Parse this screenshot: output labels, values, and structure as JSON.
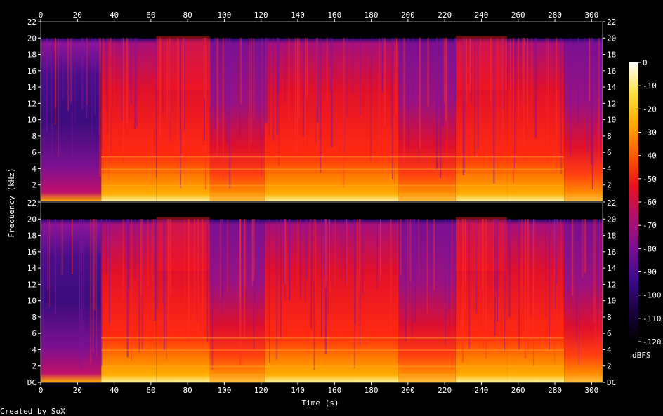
{
  "footer": "Created by SoX",
  "chart_data": {
    "type": "heatmap",
    "xlabel": "Time (s)",
    "ylabel": "Frequency (kHz)",
    "xlim": [
      0,
      306
    ],
    "x_ticks": [
      0,
      20,
      40,
      60,
      80,
      100,
      120,
      140,
      160,
      180,
      200,
      220,
      240,
      260,
      280,
      300
    ],
    "y_tick_labels": [
      "DC",
      "2",
      "4",
      "6",
      "8",
      "10",
      "12",
      "14",
      "16",
      "18",
      "20",
      "22"
    ],
    "ylim_khz": [
      0,
      22
    ],
    "channels": 2,
    "colorbar": {
      "label": "dBFS",
      "range": [
        -120,
        0
      ],
      "ticks": [
        "0",
        "-10",
        "-20",
        "-30",
        "-40",
        "-50",
        "-60",
        "-70",
        "-80",
        "-90",
        "-100",
        "-110",
        "-120"
      ],
      "colors": [
        "#000000",
        "#1a0040",
        "#3d0a8a",
        "#7a1090",
        "#b01070",
        "#e81020",
        "#ff5a00",
        "#ffaa00",
        "#ffe040",
        "#ffffff"
      ]
    },
    "content_cutoff_khz": 20,
    "segments": [
      {
        "start": 0,
        "end": 33,
        "level": "quiet"
      },
      {
        "start": 33,
        "end": 63,
        "level": "loud"
      },
      {
        "start": 63,
        "end": 92,
        "level": "very-loud"
      },
      {
        "start": 92,
        "end": 122,
        "level": "moderate"
      },
      {
        "start": 122,
        "end": 195,
        "level": "loud"
      },
      {
        "start": 195,
        "end": 226,
        "level": "moderate"
      },
      {
        "start": 226,
        "end": 254,
        "level": "very-loud"
      },
      {
        "start": 254,
        "end": 285,
        "level": "loud"
      },
      {
        "start": 285,
        "end": 306,
        "level": "sparse"
      }
    ]
  }
}
